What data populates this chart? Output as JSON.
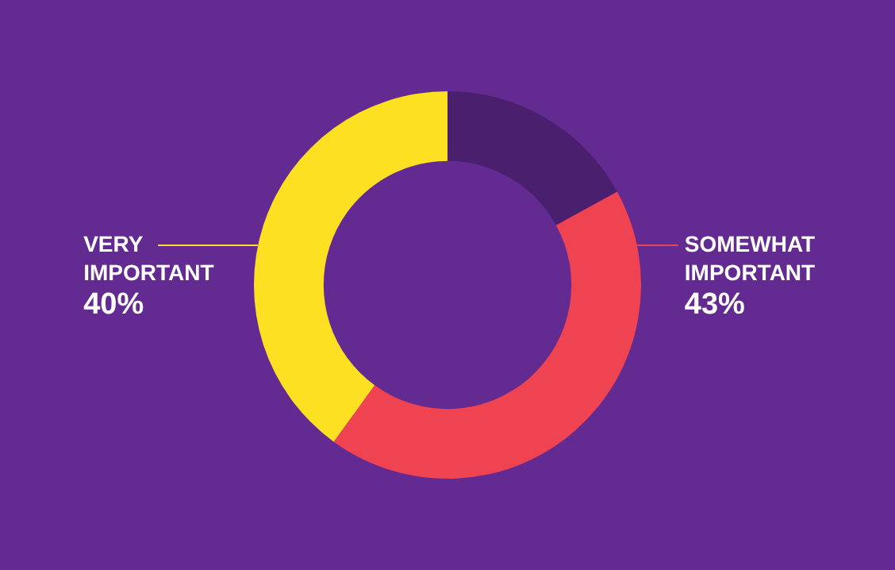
{
  "chart_data": {
    "type": "donut",
    "categories": [
      null,
      "SOMEWHAT IMPORTANT",
      "VERY IMPORTANT"
    ],
    "values": [
      17,
      43,
      40
    ],
    "colors": [
      "#4a1f6e",
      "#ef4351",
      "#fde021"
    ],
    "value_labels": [
      null,
      "43%",
      "40%"
    ],
    "legend": false
  }
}
